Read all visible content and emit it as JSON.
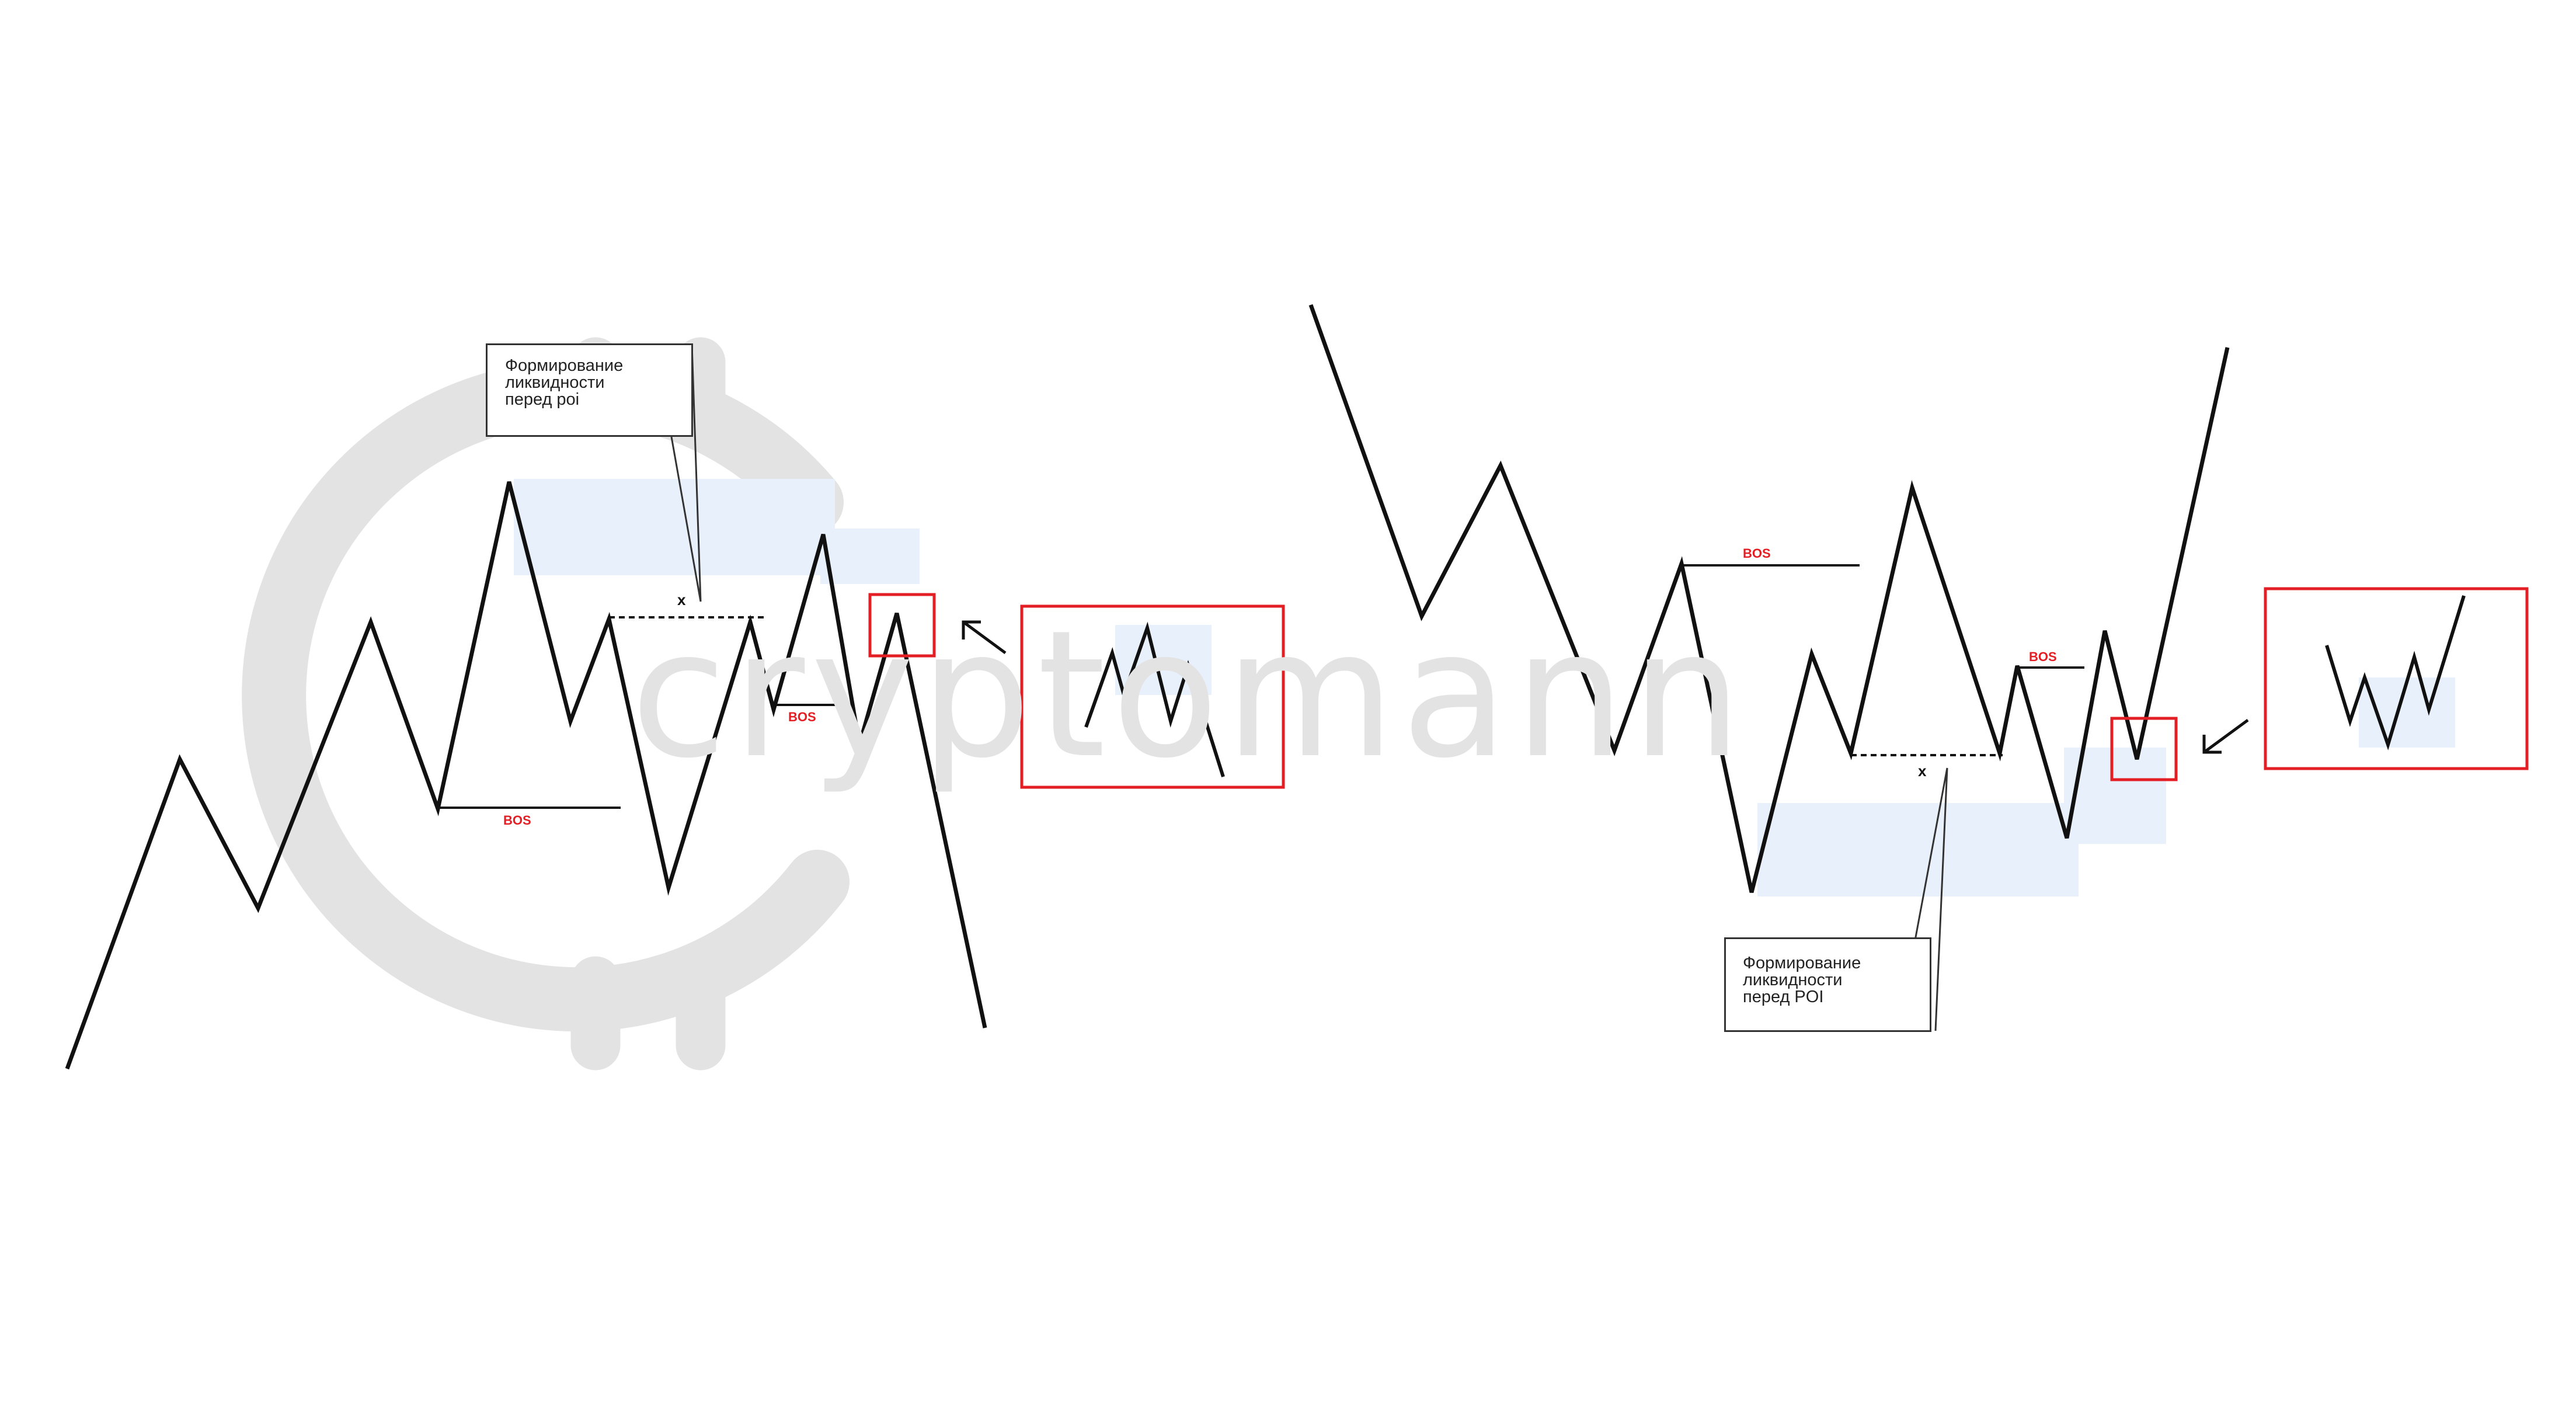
{
  "watermark": {
    "text": "cryptomann",
    "color": "#e3e3e3"
  },
  "colors": {
    "line": "#111111",
    "highlight": "#e31e24",
    "zone": "#e8f0fc"
  },
  "left_panel": {
    "callout": {
      "line1": "Формирование",
      "line2": "ликвидности",
      "line3": "перед poi"
    },
    "liquidity_marker": "x",
    "bos_labels": [
      "BOS",
      "BOS"
    ]
  },
  "right_panel": {
    "callout": {
      "line1": "Формирование",
      "line2": "ликвидности",
      "line3": "перед POI"
    },
    "liquidity_marker": "x",
    "bos_labels": [
      "BOS",
      "BOS"
    ]
  }
}
